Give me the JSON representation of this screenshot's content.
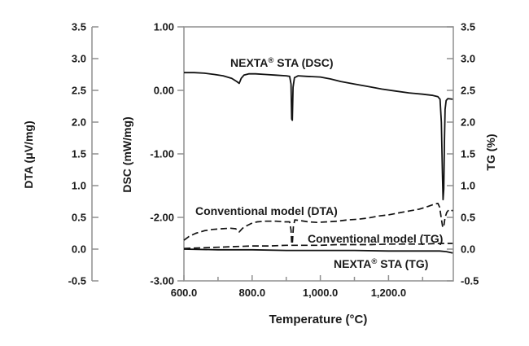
{
  "figure": {
    "background": "#ffffff",
    "text_color": "#1a1a1a",
    "axis_color": "#8f8f8f",
    "curve_color": "#121212"
  },
  "chart_data": {
    "type": "line",
    "title": "",
    "xlabel": "Temperature (°C)",
    "grid": "off",
    "legend_position": "inline-labels",
    "x_axis": {
      "label": "Temperature (°C)",
      "range": [
        600,
        1390
      ],
      "ticks_major": [
        {
          "label": "600.0",
          "value": 600
        },
        {
          "label": "800.0",
          "value": 800
        },
        {
          "label": "1,000.0",
          "value": 1000
        },
        {
          "label": "1,200.0",
          "value": 1200
        }
      ],
      "ticks_minor": [
        700,
        900,
        1100,
        1300
      ]
    },
    "axes": {
      "dta": {
        "label": "DTA (μV/mg)",
        "range": [
          -0.5,
          3.5
        ],
        "tick_labels": [
          "3.5",
          "3.0",
          "2.5",
          "2.0",
          "1.5",
          "1.0",
          "0.5",
          "0.0",
          "-0.5"
        ],
        "tick_values": [
          3.5,
          3.0,
          2.5,
          2.0,
          1.5,
          1.0,
          0.5,
          0.0,
          -0.5
        ]
      },
      "dsc": {
        "label": "DSC (mW/mg)",
        "range": [
          -3.0,
          1.0
        ],
        "tick_labels": [
          "1.00",
          "0.00",
          "-1.00",
          "-2.00",
          "-3.00"
        ],
        "tick_values": [
          1.0,
          0.0,
          -1.0,
          -2.0,
          -3.0
        ]
      },
      "tg": {
        "label": "TG (%)",
        "range": [
          -0.5,
          3.5
        ],
        "tick_labels": [
          "3.5",
          "3.0",
          "2.5",
          "2.0",
          "1.5",
          "1.0",
          "0.5",
          "0.0",
          "-0.5"
        ],
        "tick_values": [
          3.5,
          3.0,
          2.5,
          2.0,
          1.5,
          1.0,
          0.5,
          0.0,
          -0.5
        ]
      }
    },
    "series": [
      {
        "id": "nexta_dsc",
        "label": "NEXTA® STA (DSC)",
        "label_parts": {
          "pre": "NEXTA",
          "reg": "®",
          "post": " STA (DSC)"
        },
        "axis": "dsc",
        "style": "solid",
        "points": [
          [
            600,
            0.28
          ],
          [
            630,
            0.28
          ],
          [
            660,
            0.27
          ],
          [
            690,
            0.25
          ],
          [
            715,
            0.23
          ],
          [
            740,
            0.19
          ],
          [
            755,
            0.14
          ],
          [
            762,
            0.11
          ],
          [
            768,
            0.19
          ],
          [
            776,
            0.24
          ],
          [
            790,
            0.26
          ],
          [
            810,
            0.26
          ],
          [
            840,
            0.25
          ],
          [
            870,
            0.24
          ],
          [
            900,
            0.23
          ],
          [
            910,
            0.22
          ],
          [
            914,
            0.1
          ],
          [
            916,
            -0.45
          ],
          [
            918,
            -0.47
          ],
          [
            920,
            0.05
          ],
          [
            924,
            0.2
          ],
          [
            935,
            0.23
          ],
          [
            960,
            0.22
          ],
          [
            1000,
            0.21
          ],
          [
            1030,
            0.18
          ],
          [
            1060,
            0.14
          ],
          [
            1100,
            0.1
          ],
          [
            1140,
            0.06
          ],
          [
            1180,
            0.02
          ],
          [
            1220,
            -0.01
          ],
          [
            1260,
            -0.04
          ],
          [
            1300,
            -0.06
          ],
          [
            1330,
            -0.08
          ],
          [
            1345,
            -0.1
          ],
          [
            1351,
            -0.14
          ],
          [
            1355,
            -0.5
          ],
          [
            1358,
            -1.3
          ],
          [
            1360,
            -1.72
          ],
          [
            1362,
            -1.55
          ],
          [
            1364,
            -0.8
          ],
          [
            1366,
            -0.3
          ],
          [
            1369,
            -0.16
          ],
          [
            1374,
            -0.13
          ],
          [
            1388,
            -0.14
          ]
        ]
      },
      {
        "id": "conv_dta",
        "label": "Conventional model (DTA)",
        "axis": "dta",
        "style": "dashed",
        "points": [
          [
            600,
            0.14
          ],
          [
            615,
            0.2
          ],
          [
            635,
            0.25
          ],
          [
            660,
            0.29
          ],
          [
            685,
            0.31
          ],
          [
            710,
            0.32
          ],
          [
            735,
            0.33
          ],
          [
            752,
            0.32
          ],
          [
            762,
            0.27
          ],
          [
            772,
            0.33
          ],
          [
            785,
            0.37
          ],
          [
            800,
            0.41
          ],
          [
            815,
            0.43
          ],
          [
            840,
            0.44
          ],
          [
            870,
            0.44
          ],
          [
            895,
            0.43
          ],
          [
            910,
            0.43
          ],
          [
            914,
            0.3
          ],
          [
            916,
            0.09
          ],
          [
            918,
            0.08
          ],
          [
            921,
            0.35
          ],
          [
            925,
            0.46
          ],
          [
            940,
            0.45
          ],
          [
            965,
            0.43
          ],
          [
            990,
            0.42
          ],
          [
            1020,
            0.43
          ],
          [
            1050,
            0.44
          ],
          [
            1080,
            0.46
          ],
          [
            1110,
            0.47
          ],
          [
            1140,
            0.49
          ],
          [
            1170,
            0.52
          ],
          [
            1200,
            0.54
          ],
          [
            1230,
            0.57
          ],
          [
            1260,
            0.6
          ],
          [
            1290,
            0.63
          ],
          [
            1315,
            0.67
          ],
          [
            1335,
            0.71
          ],
          [
            1345,
            0.72
          ],
          [
            1350,
            0.66
          ],
          [
            1355,
            0.48
          ],
          [
            1359,
            0.34
          ],
          [
            1362,
            0.36
          ],
          [
            1366,
            0.5
          ],
          [
            1371,
            0.58
          ],
          [
            1377,
            0.62
          ],
          [
            1383,
            0.62
          ],
          [
            1388,
            0.6
          ]
        ]
      },
      {
        "id": "conv_tg",
        "label": "Conventional model (TG)",
        "axis": "tg",
        "style": "dashed",
        "points": [
          [
            600,
            0.01
          ],
          [
            650,
            0.02
          ],
          [
            700,
            0.03
          ],
          [
            750,
            0.04
          ],
          [
            800,
            0.05
          ],
          [
            850,
            0.05
          ],
          [
            900,
            0.06
          ],
          [
            950,
            0.06
          ],
          [
            1000,
            0.06
          ],
          [
            1050,
            0.07
          ],
          [
            1100,
            0.07
          ],
          [
            1150,
            0.07
          ],
          [
            1200,
            0.08
          ],
          [
            1250,
            0.08
          ],
          [
            1300,
            0.08
          ],
          [
            1350,
            0.09
          ],
          [
            1388,
            0.09
          ]
        ]
      },
      {
        "id": "nexta_tg",
        "label": "NEXTA® STA (TG)",
        "label_parts": {
          "pre": "NEXTA",
          "reg": "®",
          "post": " STA (TG)"
        },
        "axis": "tg",
        "style": "solid",
        "points": [
          [
            600,
            0.0
          ],
          [
            700,
            -0.01
          ],
          [
            800,
            -0.01
          ],
          [
            900,
            -0.02
          ],
          [
            1000,
            -0.02
          ],
          [
            1100,
            -0.02
          ],
          [
            1200,
            -0.03
          ],
          [
            1300,
            -0.03
          ],
          [
            1350,
            -0.03
          ],
          [
            1370,
            -0.04
          ],
          [
            1388,
            -0.06
          ]
        ]
      }
    ]
  }
}
